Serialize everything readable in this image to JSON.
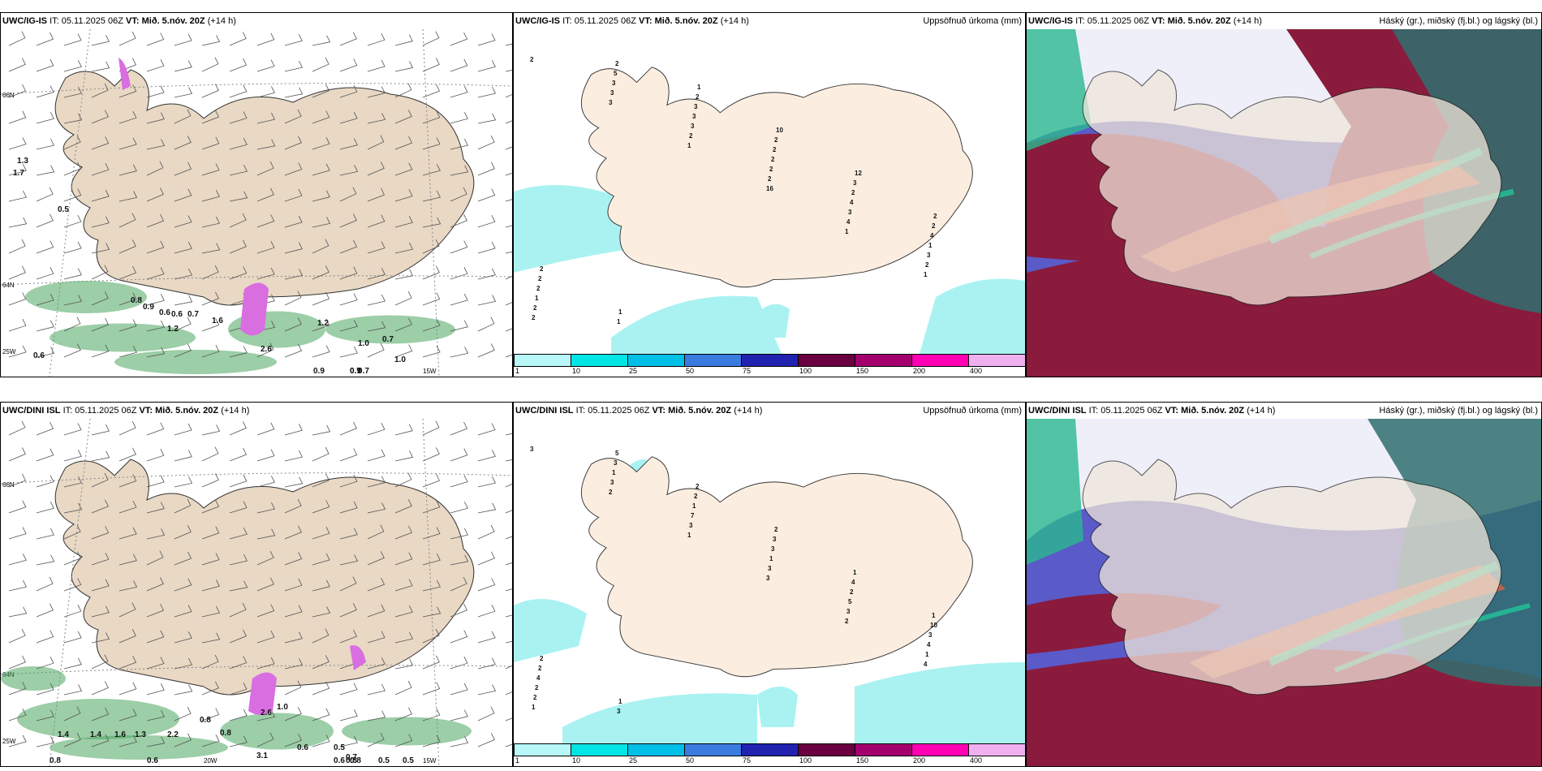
{
  "top": {
    "left": {
      "model": "UWC/IG-IS",
      "it": "IT: 05.11.2025 06Z",
      "vt_label": "VT:",
      "vt": "Mið. 5.nóv. 20Z",
      "lead": "(+14 h)"
    },
    "middle": {
      "model": "UWC/IG-IS",
      "it": "IT: 05.11.2025 06Z",
      "vt_label": "VT:",
      "vt": "Mið. 5.nóv. 20Z",
      "lead": "(+14 h)",
      "field": "Uppsöfnuð úrkoma (mm)"
    },
    "right": {
      "model": "UWC/IG-IS",
      "it": "IT: 05.11.2025 06Z",
      "vt_label": "VT:",
      "vt": "Mið. 5.nóv. 20Z",
      "lead": "(+14 h)",
      "field": "Háský (gr.), miðský (fj.bl.) og lágský (bl.)"
    }
  },
  "bottom": {
    "left": {
      "model": "UWC/DINI ISL",
      "it": "IT: 05.11.2025 06Z",
      "vt_label": "VT:",
      "vt": "Mið. 5.nóv. 20Z",
      "lead": "(+14 h)"
    },
    "middle": {
      "model": "UWC/DINI ISL",
      "it": "IT: 05.11.2025 06Z",
      "vt_label": "VT:",
      "vt": "Mið. 5.nóv. 20Z",
      "lead": "(+14 h)",
      "field": "Uppsöfnuð úrkoma (mm)"
    },
    "right": {
      "model": "UWC/DINI ISL",
      "it": "IT: 05.11.2025 06Z",
      "vt_label": "VT:",
      "vt": "Mið. 5.nóv. 20Z",
      "lead": "(+14 h)",
      "field": "Háský (gr.), miðský (fj.bl.) og lágský (bl.)"
    }
  },
  "colorbar": {
    "ticks": [
      "1",
      "10",
      "25",
      "50",
      "75",
      "100",
      "150",
      "200",
      "400"
    ],
    "colors": [
      "#b7f7f7",
      "#00e5e5",
      "#00bfe8",
      "#3a7be0",
      "#2222b0",
      "#6a0040",
      "#a3006e",
      "#ff00b4",
      "#f0b0f0"
    ]
  },
  "map_labels": {
    "lat66": "66N",
    "lat64": "64N",
    "lat25w": "25W",
    "lon15w": "15W",
    "lon20w": "20W"
  },
  "top_left_values": [
    "1.3",
    "1.7",
    "0.5",
    "0.9",
    "0.8",
    "0.6",
    "0.6",
    "0.7",
    "1.6",
    "1.2",
    "1.2",
    "1.0",
    "0.7",
    "1.0",
    "0.9",
    "0.7",
    "0.9",
    "0.7",
    "0.6",
    "2.6"
  ],
  "bottom_left_values": [
    "1.4",
    "1.4",
    "1.6",
    "1.3",
    "2.2",
    "0.8",
    "0.8",
    "1.0",
    "0.6",
    "0.5",
    "0.7",
    "0.8",
    "0.5",
    "0.8",
    "0.6",
    "0.8",
    "0.5",
    "0.6",
    "3.1",
    "2.6"
  ],
  "top_mid_values": [
    "2",
    "3",
    "1",
    "16",
    "1",
    "1",
    "2",
    "3",
    "2",
    "2",
    "4",
    "2",
    "2",
    "3",
    "3",
    "2",
    "3",
    "3",
    "1",
    "5",
    "3",
    "2",
    "4",
    "1",
    "2",
    "2",
    "3",
    "2",
    "2",
    "4",
    "2",
    "1",
    "2",
    "2",
    "3",
    "2",
    "2",
    "1",
    "1",
    "10",
    "12",
    "2"
  ],
  "bottom_mid_values": [
    "3",
    "2",
    "1",
    "3",
    "2",
    "4",
    "1",
    "3",
    "3",
    "3",
    "3",
    "1",
    "2",
    "1",
    "7",
    "1",
    "5",
    "4",
    "2",
    "3",
    "1",
    "3",
    "2",
    "3",
    "4",
    "5",
    "2",
    "3",
    "4",
    "10",
    "2",
    "3",
    "2",
    "2",
    "1",
    "1",
    "2",
    "1"
  ]
}
